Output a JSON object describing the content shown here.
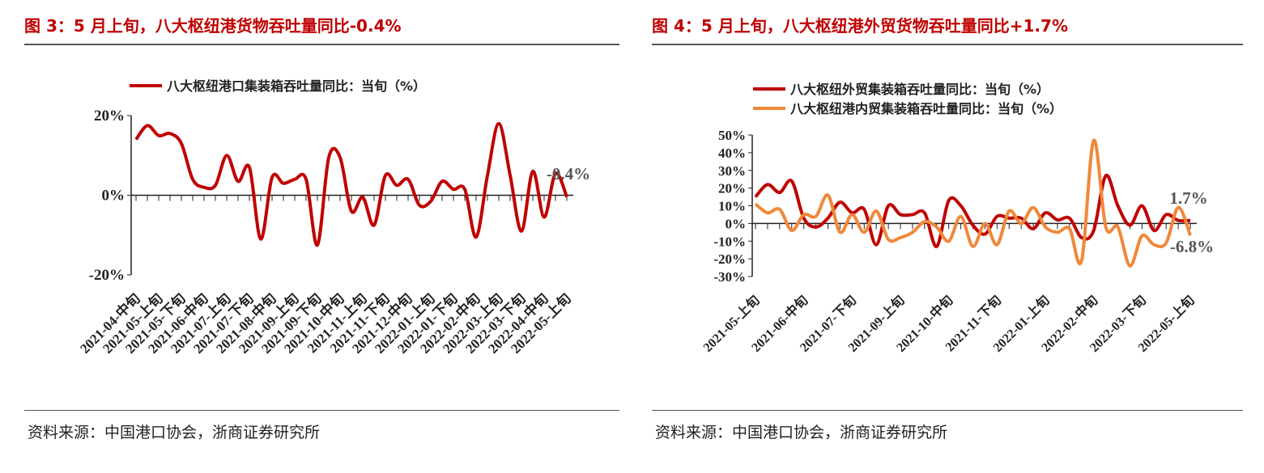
{
  "panels": [
    {
      "title": "图 3：5 月上旬，八大枢纽港货物吞吐量同比-0.4%",
      "source": "资料来源：中国港口协会，浙商证券研究所"
    },
    {
      "title": "图 4：5 月上旬，八大枢纽港外贸货物吞吐量同比+1.7%",
      "source": "资料来源：中国港口协会，浙商证券研究所"
    }
  ],
  "chart_data": [
    {
      "type": "line",
      "ylim": [
        -20,
        20
      ],
      "yticks": [
        "20%",
        "0%",
        "-20%"
      ],
      "ytick_values": [
        20,
        0,
        -20
      ],
      "xtick_labels": [
        "2021-04-中旬",
        "2021-05-上旬",
        "2021-05-下旬",
        "2021-06-中旬",
        "2021-07-上旬",
        "2021-07-下旬",
        "2021-08-中旬",
        "2021-09-上旬",
        "2021-09-下旬",
        "2021-10-中旬",
        "2021-11-上旬",
        "2021-11-下旬",
        "2021-12-中旬",
        "2022-01-上旬",
        "2022-01-下旬",
        "2022-02-中旬",
        "2022-03-上旬",
        "2022-03-下旬",
        "2022-04-中旬",
        "2022-05-上旬"
      ],
      "series": [
        {
          "name": "八大枢纽港口集装箱吞吐量同比：当旬（%）",
          "color": "#c00000",
          "values": [
            14,
            17.5,
            15,
            15.5,
            13,
            4,
            2,
            2.5,
            10,
            3.5,
            7,
            -11,
            4.5,
            3,
            4,
            4,
            -12.5,
            9.5,
            9.5,
            -4,
            -0.5,
            -7.5,
            5,
            2.5,
            4,
            -2.5,
            -1.5,
            3.5,
            1.5,
            1.5,
            -10.5,
            5,
            18,
            5,
            -9,
            6,
            -5.5,
            5.5,
            -0.4
          ]
        }
      ],
      "annotations": [
        "-0.4%"
      ],
      "legend": "top"
    },
    {
      "type": "line",
      "ylim": [
        -30,
        50
      ],
      "yticks": [
        "50%",
        "40%",
        "30%",
        "20%",
        "10%",
        "0%",
        "-10%",
        "-20%",
        "-30%"
      ],
      "ytick_values": [
        50,
        40,
        30,
        20,
        10,
        0,
        -10,
        -20,
        -30
      ],
      "xtick_labels": [
        "2021-05-上旬",
        "2021-06-中旬",
        "2021-07-下旬",
        "2021-09-上旬",
        "2021-10-中旬",
        "2021-11-下旬",
        "2022-01-上旬",
        "2022-02-中旬",
        "2022-03-下旬",
        "2022-05-上旬"
      ],
      "series": [
        {
          "name": "八大枢纽外贸集装箱吞吐量同比：当旬（%）",
          "color": "#c00000",
          "values": [
            15,
            22,
            17.5,
            24,
            3,
            -2,
            3,
            12,
            6,
            8,
            -12,
            10,
            5,
            5,
            6,
            -13,
            13,
            10,
            -1,
            -6,
            4,
            3,
            3,
            -3,
            6,
            2,
            3,
            -8,
            -4,
            27,
            10,
            -1,
            10,
            -4,
            5,
            1.7,
            1.7
          ]
        },
        {
          "name": "八大枢纽港内贸集装箱吞吐量同比：当旬（%）",
          "color": "#f0883a",
          "values": [
            11,
            6,
            8,
            -4,
            5,
            4,
            16,
            -5,
            5,
            -5,
            7,
            -9,
            -8,
            -5,
            1,
            -2,
            -10,
            4,
            -13,
            0,
            -12,
            7,
            0,
            9,
            -2,
            -5,
            -3,
            -21,
            47,
            -2,
            -2,
            -24,
            -7,
            -12,
            -11,
            9,
            -6.8
          ]
        }
      ],
      "annotations": [
        "1.7%",
        "-6.8%"
      ],
      "legend": "top"
    }
  ]
}
